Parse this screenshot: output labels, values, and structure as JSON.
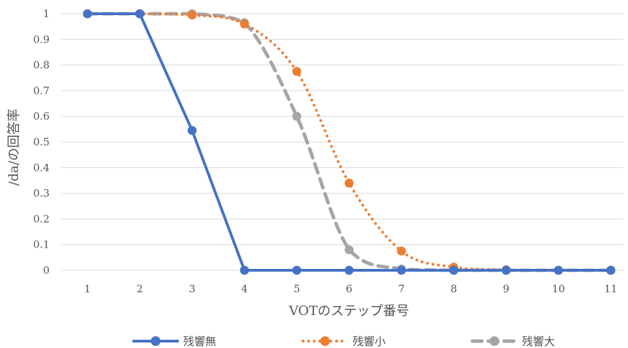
{
  "chart_data": {
    "type": "line",
    "x": [
      1,
      2,
      3,
      4,
      5,
      6,
      7,
      8,
      9,
      10,
      11
    ],
    "xlabel": "VOTのステップ番号",
    "ylabel": "/da/の回答率",
    "ylim": [
      0,
      1
    ],
    "yticks": [
      "0",
      "0.1",
      "0.2",
      "0.3",
      "0.4",
      "0.5",
      "0.6",
      "0.7",
      "0.8",
      "0.9",
      "1"
    ],
    "xticks": [
      "1",
      "2",
      "3",
      "4",
      "5",
      "6",
      "7",
      "8",
      "9",
      "10",
      "11"
    ],
    "grid": true,
    "legend_position": "bottom",
    "series": [
      {
        "name": "残響無",
        "color": "#4472c4",
        "style": "solid",
        "smooth": false,
        "values": [
          1,
          1,
          0.545,
          0,
          0,
          0,
          0,
          0,
          0,
          0,
          0
        ]
      },
      {
        "name": "残響小",
        "color": "#ed7d31",
        "style": "dotted",
        "smooth": true,
        "values": [
          1,
          1,
          0.995,
          0.96,
          0.775,
          0.34,
          0.075,
          0.012,
          0.002,
          0,
          0
        ]
      },
      {
        "name": "残響大",
        "color": "#a5a5a5",
        "style": "dashed",
        "smooth": true,
        "values": [
          1,
          1,
          1,
          0.965,
          0.6,
          0.08,
          0.005,
          0,
          0,
          0,
          0
        ]
      }
    ]
  }
}
